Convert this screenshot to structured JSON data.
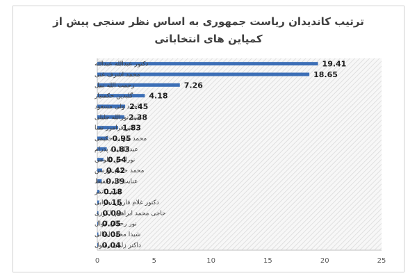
{
  "chart_data": {
    "type": "bar",
    "orientation": "horizontal",
    "title_lines": [
      "ترتیب کاندیدان ریاست جمهوری به اساس نظر سنجی پیش از",
      "کمپاین های انتخاباتی"
    ],
    "categories": [
      "دکتور عبدالله عبدالله",
      "محمد اشرف غنی",
      "رحمت الله نبیل",
      "گلبدین حکمتیار",
      "احمد ولی مسعود",
      "سید نورالله جلیلی",
      "داکتر فرامرز تمنا",
      "محمد شهاب حکیمی",
      "عبداللطیف پدرام",
      "نورالحق علومی",
      "محمد حکیم تورسن",
      "عنایت الله حفیظ",
      "حنیف اتمر",
      "دکتور غلام فاروق نجرابی",
      "حاجی محمد ابراهیم الکوزی",
      "نور رحمان لیوال",
      "شیدا محمد ابدالی",
      "داکتر زلمی رسول"
    ],
    "values": [
      19.41,
      18.65,
      7.26,
      4.18,
      2.45,
      2.38,
      1.83,
      0.95,
      0.83,
      0.54,
      0.42,
      0.39,
      0.18,
      0.15,
      0.09,
      0.05,
      0.05,
      0.04
    ],
    "value_labels": [
      "19.41",
      "18.65",
      "7.26",
      "4.18",
      "2.45",
      "2.38",
      "1.83",
      "0.95",
      "0.83",
      "0.54",
      "0.42",
      "0.39",
      "0.18",
      "0.15",
      "0.09",
      "0.05",
      "0.05",
      "0.04"
    ],
    "x_ticks": [
      "0",
      "5",
      "10",
      "15",
      "20",
      "25"
    ],
    "xlim": [
      0,
      25
    ],
    "bar_color": "#3d6fb6",
    "plot_background": "hatched light grey",
    "grid": false,
    "legend": "none"
  }
}
